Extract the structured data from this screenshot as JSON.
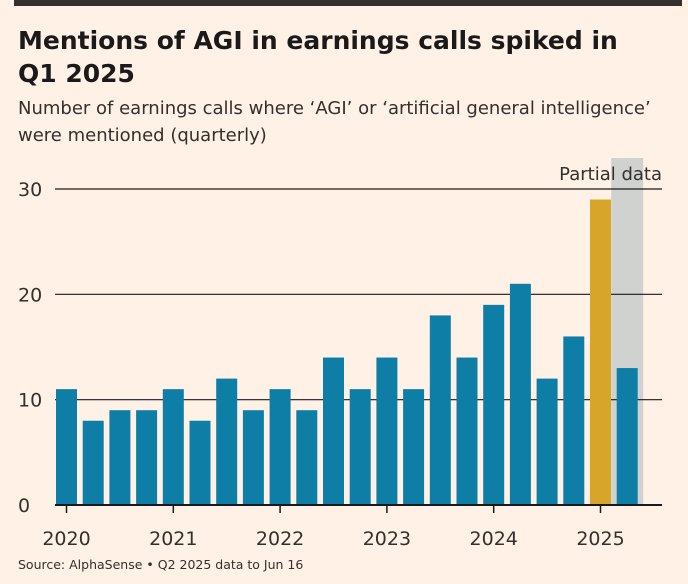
{
  "title": "Mentions of AGI in earnings calls spiked in Q1 2025",
  "subtitle": "Number of earnings calls where ‘AGI’ or ‘artificial general intelligence’ were mentioned (quarterly)",
  "source": "Source: AlphaSense • Q2 2025 data to Jun 16",
  "colors": {
    "background": "#fff1e5",
    "bar": "#0f7ea6",
    "highlight": "#d8a52b",
    "partial_shade": "#d0d2cf",
    "text": "#33302e"
  },
  "chart_data": {
    "type": "bar",
    "title": "Mentions of AGI in earnings calls spiked in Q1 2025",
    "subtitle": "Number of earnings calls where ‘AGI’ or ‘artificial general intelligence’ were mentioned (quarterly)",
    "categories": [
      "Q1 2020",
      "Q2 2020",
      "Q3 2020",
      "Q4 2020",
      "Q1 2021",
      "Q2 2021",
      "Q3 2021",
      "Q4 2021",
      "Q1 2022",
      "Q2 2022",
      "Q3 2022",
      "Q4 2022",
      "Q1 2023",
      "Q2 2023",
      "Q3 2023",
      "Q4 2023",
      "Q1 2024",
      "Q2 2024",
      "Q3 2024",
      "Q4 2024",
      "Q1 2025",
      "Q2 2025"
    ],
    "values": [
      11,
      8,
      9,
      9,
      11,
      8,
      12,
      9,
      11,
      9,
      14,
      11,
      14,
      11,
      18,
      14,
      19,
      21,
      12,
      16,
      29,
      13
    ],
    "highlight_index": 20,
    "partial_index": 21,
    "annotation": "Partial data",
    "x_tick_labels": [
      "2020",
      "2021",
      "2022",
      "2023",
      "2024",
      "2025"
    ],
    "y_ticks": [
      0,
      10,
      20,
      30
    ],
    "ylim": [
      0,
      30
    ],
    "xlabel": "",
    "ylabel": "",
    "grid": true
  }
}
